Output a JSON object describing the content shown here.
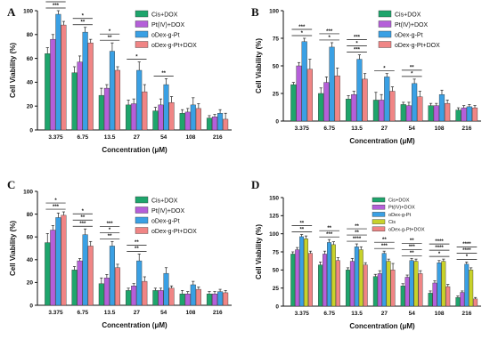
{
  "chart_data": [
    {
      "type": "bar",
      "panel": "A",
      "categories": [
        "3.375",
        "6.75",
        "13.5",
        "27",
        "54",
        "108",
        "216"
      ],
      "xlabel": "Concentration (μM)",
      "ylabel": "Cell Viability (%)",
      "ylim": [
        0,
        100
      ],
      "yticks": [
        0,
        20,
        40,
        60,
        80,
        100
      ],
      "legend_position": "top-right",
      "series": [
        {
          "name": "Cis+DOX",
          "color": "#1ea56c",
          "values": [
            64,
            48,
            29,
            21,
            16,
            14,
            10
          ],
          "errors": [
            5,
            5,
            6,
            4,
            3,
            3,
            2
          ]
        },
        {
          "name": "Pt(IV)+DOX",
          "color": "#b55fd9",
          "values": [
            76,
            57,
            35,
            22,
            21,
            15,
            11
          ],
          "errors": [
            4,
            5,
            3,
            4,
            5,
            3,
            2
          ]
        },
        {
          "name": "oDex-g-Pt",
          "color": "#3aa0e4",
          "values": [
            97,
            82,
            66,
            50,
            38,
            21,
            14
          ],
          "errors": [
            3,
            4,
            7,
            7,
            5,
            6,
            3
          ]
        },
        {
          "name": "oDex-g-Pt+DOX",
          "color": "#f08585",
          "values": [
            88,
            73,
            50,
            32,
            23,
            18,
            9
          ],
          "errors": [
            3,
            3,
            3,
            6,
            5,
            4,
            5
          ]
        }
      ],
      "annotations": [
        {
          "category": 0,
          "labels": [
            "***",
            "**",
            "*"
          ]
        },
        {
          "category": 1,
          "labels": [
            "**",
            "*"
          ]
        },
        {
          "category": 2,
          "labels": [
            "**",
            "*"
          ]
        },
        {
          "category": 3,
          "labels": [
            "*"
          ]
        },
        {
          "category": 4,
          "labels": [
            "**"
          ]
        }
      ]
    },
    {
      "type": "bar",
      "panel": "B",
      "categories": [
        "3.375",
        "6.75",
        "13.5",
        "27",
        "54",
        "108",
        "216"
      ],
      "xlabel": "Concentration (μM)",
      "ylabel": "Cell Viability (%)",
      "ylim": [
        0,
        100
      ],
      "yticks": [
        0,
        25,
        50,
        75,
        100
      ],
      "legend_position": "top-right",
      "series": [
        {
          "name": "Cis+DOX",
          "color": "#1ea56c",
          "values": [
            33,
            25,
            20,
            19,
            15,
            14,
            10
          ],
          "errors": [
            2,
            5,
            3,
            7,
            2,
            2,
            2
          ]
        },
        {
          "name": "Pt(IV)+DOX",
          "color": "#b55fd9",
          "values": [
            50,
            35,
            24,
            19,
            14,
            14,
            12
          ],
          "errors": [
            3,
            5,
            3,
            5,
            3,
            2,
            2
          ]
        },
        {
          "name": "oDex-g-Pt",
          "color": "#3aa0e4",
          "values": [
            72,
            67,
            56,
            40,
            34,
            24,
            13
          ],
          "errors": [
            3,
            4,
            4,
            3,
            4,
            4,
            2
          ]
        },
        {
          "name": "oDex-g-Pt+DOX",
          "color": "#f08585",
          "values": [
            47,
            41,
            38,
            27,
            22,
            16,
            12
          ],
          "errors": [
            9,
            7,
            5,
            4,
            5,
            3,
            2
          ]
        }
      ],
      "annotations": [
        {
          "category": 0,
          "labels": [
            "*",
            "***"
          ]
        },
        {
          "category": 1,
          "labels": [
            "*",
            "***"
          ]
        },
        {
          "category": 2,
          "labels": [
            "***",
            "*",
            "***"
          ]
        },
        {
          "category": 3,
          "labels": [
            "*"
          ]
        },
        {
          "category": 4,
          "labels": [
            "*",
            "**"
          ]
        }
      ]
    },
    {
      "type": "bar",
      "panel": "C",
      "categories": [
        "3.375",
        "6.75",
        "13.5",
        "27",
        "54",
        "108",
        "216"
      ],
      "xlabel": "Concentration (μM)",
      "ylabel": "Cell Viability (%)",
      "ylim": [
        0,
        100
      ],
      "yticks": [
        0,
        20,
        40,
        60,
        80,
        100
      ],
      "legend_position": "top-right",
      "series": [
        {
          "name": "Cis+DOX",
          "color": "#1ea56c",
          "values": [
            55,
            31,
            19,
            13,
            13,
            10,
            10
          ],
          "errors": [
            8,
            3,
            5,
            2,
            2,
            3,
            2
          ]
        },
        {
          "name": "Pt(IV)+DOX",
          "color": "#b55fd9",
          "values": [
            66,
            39,
            24,
            17,
            13,
            10,
            10
          ],
          "errors": [
            4,
            2,
            3,
            2,
            2,
            2,
            2
          ]
        },
        {
          "name": "oDex-g-Pt",
          "color": "#3aa0e4",
          "values": [
            77,
            62,
            52,
            39,
            28,
            18,
            12
          ],
          "errors": [
            4,
            5,
            4,
            6,
            5,
            3,
            2
          ]
        },
        {
          "name": "oDex-g-Pt+DOX",
          "color": "#f08585",
          "values": [
            79,
            52,
            33,
            21,
            15,
            14,
            11
          ],
          "errors": [
            3,
            4,
            3,
            4,
            2,
            2,
            2
          ]
        }
      ],
      "annotations": [
        {
          "category": 0,
          "labels": [
            "***",
            "*"
          ]
        },
        {
          "category": 1,
          "labels": [
            "***",
            "**",
            "*"
          ]
        },
        {
          "category": 2,
          "labels": [
            "**",
            "*",
            "***"
          ]
        },
        {
          "category": 3,
          "labels": [
            "**",
            "**"
          ]
        }
      ]
    },
    {
      "type": "bar",
      "panel": "D",
      "categories": [
        "3.375",
        "6.75",
        "13.5",
        "27",
        "54",
        "108",
        "216"
      ],
      "xlabel": "Concentration (μM)",
      "ylabel": "Cell Viability (%)",
      "ylim": [
        0,
        150
      ],
      "yticks": [
        0,
        25,
        50,
        75,
        100,
        125,
        150
      ],
      "legend_position": "top-right",
      "series": [
        {
          "name": "Cis+DOX",
          "color": "#1ea56c",
          "values": [
            72,
            57,
            50,
            41,
            28,
            18,
            12
          ],
          "errors": [
            3,
            4,
            3,
            3,
            3,
            3,
            2
          ]
        },
        {
          "name": "Pt(IV)+DOX",
          "color": "#b55fd9",
          "values": [
            78,
            72,
            62,
            45,
            40,
            32,
            19
          ],
          "errors": [
            3,
            4,
            4,
            4,
            3,
            3,
            2
          ]
        },
        {
          "name": "oDex-g-Pt",
          "color": "#3aa0e4",
          "values": [
            96,
            88,
            82,
            73,
            63,
            60,
            58
          ],
          "errors": [
            3,
            4,
            4,
            3,
            3,
            3,
            3
          ]
        },
        {
          "name": "Cis",
          "color": "#c8d22a",
          "values": [
            93,
            85,
            78,
            62,
            62,
            62,
            50
          ],
          "errors": [
            4,
            4,
            4,
            3,
            3,
            3,
            3
          ]
        },
        {
          "name": "oDex-g-Pt+DOX",
          "color": "#f08585",
          "values": [
            73,
            63,
            57,
            50,
            45,
            27,
            10
          ],
          "errors": [
            3,
            4,
            3,
            9,
            4,
            3,
            2
          ]
        }
      ],
      "annotations": [
        {
          "category": 0,
          "labels": [
            "**",
            "**"
          ]
        },
        {
          "category": 1,
          "labels": [
            "***",
            "**"
          ]
        },
        {
          "category": 2,
          "labels": [
            "****",
            "**",
            "**"
          ]
        },
        {
          "category": 3,
          "labels": [
            "***",
            "**"
          ]
        },
        {
          "category": 4,
          "labels": [
            "**",
            "***",
            "**"
          ]
        },
        {
          "category": 5,
          "labels": [
            "*",
            "****",
            "****"
          ]
        },
        {
          "category": 6,
          "labels": [
            "*",
            "****",
            "****"
          ]
        }
      ]
    }
  ]
}
